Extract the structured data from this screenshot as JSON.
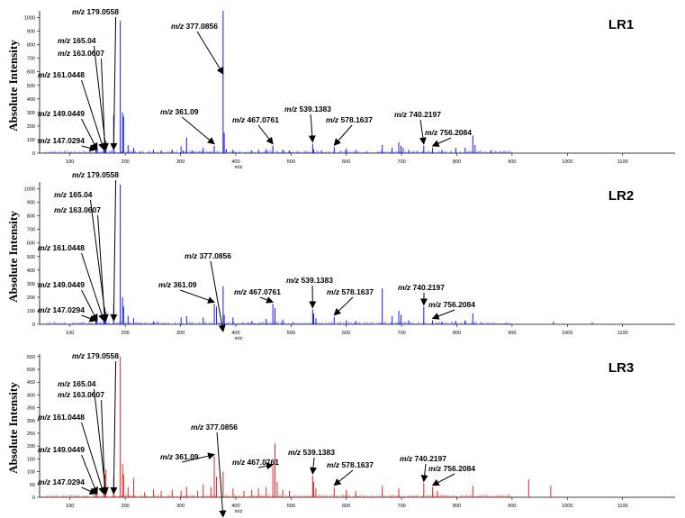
{
  "ylabel": "Absolute Intensity",
  "xlabel": "m/z",
  "colors": {
    "LR1": "#1a1aee",
    "LR2": "#1a1aee",
    "LR3": "#e8242b",
    "annotation": "#000000"
  },
  "chart_data": [
    {
      "type": "line",
      "title": "LR1",
      "xlabel": "m/z",
      "ylabel": "Absolute Intensity",
      "xlim": [
        45,
        1195
      ],
      "ylim": [
        0,
        1050
      ],
      "x_ticks": [
        100,
        200,
        300,
        400,
        500,
        600,
        700,
        800,
        900,
        1000,
        1100
      ],
      "y_ticks": [
        0,
        100,
        200,
        300,
        400,
        500,
        600,
        700,
        800,
        900,
        1000
      ],
      "grid": false,
      "color": "#1a1aee",
      "peaks": [
        [
          147.03,
          40
        ],
        [
          149.04,
          35
        ],
        [
          161.04,
          55
        ],
        [
          163.06,
          75
        ],
        [
          165.04,
          90
        ],
        [
          179.06,
          280
        ],
        [
          191.06,
          975
        ],
        [
          195.05,
          300
        ],
        [
          197.05,
          270
        ],
        [
          205.05,
          60
        ],
        [
          215.1,
          40
        ],
        [
          251,
          25
        ],
        [
          265,
          20
        ],
        [
          285,
          25
        ],
        [
          301.03,
          50
        ],
        [
          305,
          20
        ],
        [
          311.04,
          115
        ],
        [
          321,
          20
        ],
        [
          341.1,
          40
        ],
        [
          361.09,
          55
        ],
        [
          377.09,
          1050
        ],
        [
          379.1,
          150
        ],
        [
          383,
          30
        ],
        [
          395,
          25
        ],
        [
          429,
          20
        ],
        [
          441,
          25
        ],
        [
          455,
          30
        ],
        [
          467.08,
          55
        ],
        [
          485,
          25
        ],
        [
          497,
          20
        ],
        [
          539.14,
          70
        ],
        [
          541,
          30
        ],
        [
          555,
          20
        ],
        [
          578.16,
          45
        ],
        [
          600,
          35
        ],
        [
          617,
          25
        ],
        [
          665,
          60
        ],
        [
          683,
          40
        ],
        [
          695,
          80
        ],
        [
          699,
          55
        ],
        [
          703,
          40
        ],
        [
          713,
          25
        ],
        [
          740.22,
          55
        ],
        [
          756.21,
          40
        ],
        [
          773,
          25
        ],
        [
          798,
          40
        ],
        [
          815,
          40
        ],
        [
          829,
          130
        ],
        [
          833,
          60
        ],
        [
          862,
          20
        ]
      ],
      "annotations": [
        {
          "label": "m/z 147.0294",
          "mz": 147.0294
        },
        {
          "label": "m/z 149.0449",
          "mz": 149.0449
        },
        {
          "label": "m/z 161.0448",
          "mz": 161.0448
        },
        {
          "label": "m/z 163.0607",
          "mz": 163.0607
        },
        {
          "label": "m/z 165.04",
          "mz": 165.04
        },
        {
          "label": "m/z 179.0558",
          "mz": 179.0558
        },
        {
          "label": "m/z 361.09",
          "mz": 361.09
        },
        {
          "label": "m/z 377.0856",
          "mz": 377.0856
        },
        {
          "label": "m/z 467.0761",
          "mz": 467.0761
        },
        {
          "label": "m/z 539.1383",
          "mz": 539.1383
        },
        {
          "label": "m/z 578.1637",
          "mz": 578.1637
        },
        {
          "label": "m/z 740.2197",
          "mz": 740.2197
        },
        {
          "label": "m/z 756.2084",
          "mz": 756.2084
        }
      ]
    },
    {
      "type": "line",
      "title": "LR2",
      "xlabel": "m/z",
      "ylabel": "Absolute Intensity",
      "xlim": [
        45,
        1195
      ],
      "ylim": [
        0,
        1050
      ],
      "x_ticks": [
        100,
        200,
        300,
        400,
        500,
        600,
        700,
        800,
        900,
        1000,
        1100
      ],
      "y_ticks": [
        0,
        100,
        200,
        300,
        400,
        500,
        600,
        700,
        800,
        900,
        1000
      ],
      "grid": false,
      "color": "#1a1aee",
      "peaks": [
        [
          147.03,
          30
        ],
        [
          149.04,
          60
        ],
        [
          161.04,
          50
        ],
        [
          163.06,
          120
        ],
        [
          165.04,
          95
        ],
        [
          179.06,
          150
        ],
        [
          191.06,
          1030
        ],
        [
          195.05,
          200
        ],
        [
          197.05,
          130
        ],
        [
          205.05,
          60
        ],
        [
          215.1,
          45
        ],
        [
          251,
          20
        ],
        [
          301.03,
          50
        ],
        [
          311.04,
          60
        ],
        [
          341.1,
          50
        ],
        [
          361.09,
          150
        ],
        [
          365,
          130
        ],
        [
          377.09,
          280
        ],
        [
          379.1,
          70
        ],
        [
          395,
          50
        ],
        [
          429,
          25
        ],
        [
          455,
          40
        ],
        [
          467.08,
          150
        ],
        [
          471,
          120
        ],
        [
          485,
          35
        ],
        [
          539.14,
          110
        ],
        [
          541,
          80
        ],
        [
          545,
          45
        ],
        [
          578.16,
          55
        ],
        [
          600,
          30
        ],
        [
          617,
          25
        ],
        [
          665,
          265
        ],
        [
          683,
          60
        ],
        [
          695,
          100
        ],
        [
          699,
          70
        ],
        [
          713,
          30
        ],
        [
          740.22,
          130
        ],
        [
          756.21,
          30
        ],
        [
          773,
          20
        ],
        [
          798,
          25
        ],
        [
          815,
          30
        ],
        [
          829,
          80
        ],
        [
          975,
          20
        ],
        [
          1045,
          15
        ]
      ],
      "annotations": [
        {
          "label": "m/z 147.0294",
          "mz": 147.0294
        },
        {
          "label": "m/z 149.0449",
          "mz": 149.0449
        },
        {
          "label": "m/z 161.0448",
          "mz": 161.0448
        },
        {
          "label": "m/z 163.0607",
          "mz": 163.0607
        },
        {
          "label": "m/z 165.04",
          "mz": 165.04
        },
        {
          "label": "m/z 179.0558",
          "mz": 179.0558
        },
        {
          "label": "m/z 361.09",
          "mz": 361.09
        },
        {
          "label": "m/z 377.0856",
          "mz": 377.0856
        },
        {
          "label": "m/z 467.0761",
          "mz": 467.0761
        },
        {
          "label": "m/z 539.1383",
          "mz": 539.1383
        },
        {
          "label": "m/z 578.1637",
          "mz": 578.1637
        },
        {
          "label": "m/z 740.2197",
          "mz": 740.2197
        },
        {
          "label": "m/z 756.2084",
          "mz": 756.2084
        }
      ]
    },
    {
      "type": "line",
      "title": "LR3",
      "xlabel": "m/z",
      "ylabel": "Absolute Intensity",
      "xlim": [
        45,
        1195
      ],
      "ylim": [
        0,
        560
      ],
      "x_ticks": [
        100,
        200,
        300,
        400,
        500,
        600,
        700,
        800,
        900,
        1000,
        1100
      ],
      "y_ticks": [
        0,
        50,
        100,
        150,
        200,
        250,
        300,
        350,
        400,
        450,
        500,
        550
      ],
      "grid": false,
      "color": "#e8242b",
      "peaks": [
        [
          147.03,
          25
        ],
        [
          149.04,
          30
        ],
        [
          161.04,
          40
        ],
        [
          163.06,
          90
        ],
        [
          165.04,
          110
        ],
        [
          179.06,
          80
        ],
        [
          191.06,
          550
        ],
        [
          195.05,
          130
        ],
        [
          197.05,
          90
        ],
        [
          205.05,
          40
        ],
        [
          215.1,
          75
        ],
        [
          235,
          20
        ],
        [
          251,
          30
        ],
        [
          265,
          25
        ],
        [
          285,
          30
        ],
        [
          301.03,
          25
        ],
        [
          311.04,
          40
        ],
        [
          331,
          25
        ],
        [
          341.1,
          50
        ],
        [
          355,
          40
        ],
        [
          361.09,
          160
        ],
        [
          365,
          80
        ],
        [
          377.09,
          100
        ],
        [
          395,
          35
        ],
        [
          415,
          25
        ],
        [
          429,
          30
        ],
        [
          441,
          35
        ],
        [
          455,
          40
        ],
        [
          467.08,
          120
        ],
        [
          471,
          210
        ],
        [
          475,
          60
        ],
        [
          485,
          30
        ],
        [
          497,
          25
        ],
        [
          539.14,
          85
        ],
        [
          541,
          60
        ],
        [
          545,
          35
        ],
        [
          578.16,
          40
        ],
        [
          600,
          30
        ],
        [
          617,
          25
        ],
        [
          665,
          45
        ],
        [
          695,
          35
        ],
        [
          740.22,
          55
        ],
        [
          756.21,
          40
        ],
        [
          765,
          25
        ],
        [
          829,
          45
        ],
        [
          930,
          70
        ],
        [
          970,
          45
        ]
      ],
      "annotations": [
        {
          "label": "m/z 147.0294",
          "mz": 147.0294
        },
        {
          "label": "m/z 149.0449",
          "mz": 149.0449
        },
        {
          "label": "m/z 161.0448",
          "mz": 161.0448
        },
        {
          "label": "m/z 163.0607",
          "mz": 163.0607
        },
        {
          "label": "m/z 165.04",
          "mz": 165.04
        },
        {
          "label": "m/z 179.0558",
          "mz": 179.0558
        },
        {
          "label": "m/z 361.09",
          "mz": 361.09
        },
        {
          "label": "m/z 377.0856",
          "mz": 377.0856
        },
        {
          "label": "m/z 467.0761",
          "mz": 467.0761
        },
        {
          "label": "m/z 539.1383",
          "mz": 539.1383
        },
        {
          "label": "m/z 578.1637",
          "mz": 578.1637
        },
        {
          "label": "m/z 740.2197",
          "mz": 740.2197
        },
        {
          "label": "m/z 756.2084",
          "mz": 756.2084
        }
      ]
    }
  ]
}
